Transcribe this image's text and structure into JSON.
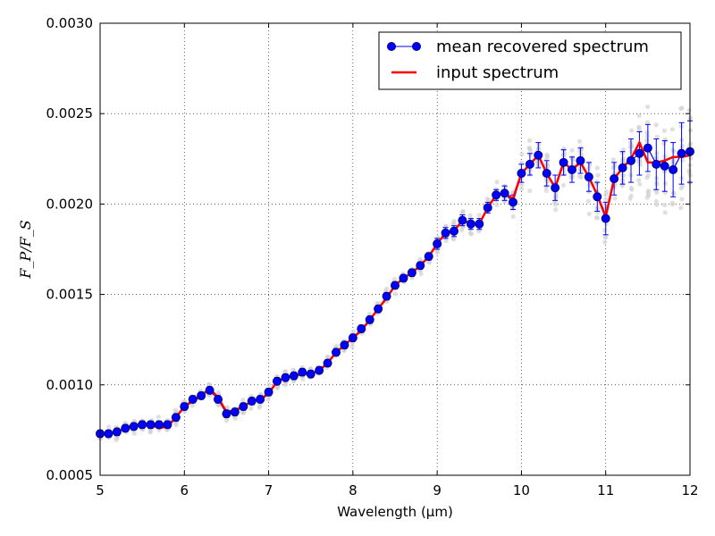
{
  "chart_data": {
    "type": "line",
    "xlabel": "Wavelength (μm)",
    "ylabel": "F_P/F_S",
    "xlim": [
      5,
      12
    ],
    "ylim": [
      0.0005,
      0.003
    ],
    "x_ticks": [
      "5",
      "6",
      "7",
      "8",
      "9",
      "10",
      "11",
      "12"
    ],
    "y_ticks": [
      "0.0005",
      "0.0010",
      "0.0015",
      "0.0020",
      "0.0025",
      "0.0030"
    ],
    "grid": true,
    "legend_placement": "top-right",
    "series": [
      {
        "name": "mean recovered spectrum",
        "color": "#0000ff",
        "style": "line-with-markers-and-errorbars",
        "x": [
          5.0,
          5.1,
          5.2,
          5.3,
          5.4,
          5.5,
          5.6,
          5.7,
          5.8,
          5.9,
          6.0,
          6.1,
          6.2,
          6.3,
          6.4,
          6.5,
          6.6,
          6.7,
          6.8,
          6.9,
          7.0,
          7.1,
          7.2,
          7.3,
          7.4,
          7.5,
          7.6,
          7.7,
          7.8,
          7.9,
          8.0,
          8.1,
          8.2,
          8.3,
          8.4,
          8.5,
          8.6,
          8.7,
          8.8,
          8.9,
          9.0,
          9.1,
          9.2,
          9.3,
          9.4,
          9.5,
          9.6,
          9.7,
          9.8,
          9.9,
          10.0,
          10.1,
          10.2,
          10.3,
          10.4,
          10.5,
          10.6,
          10.7,
          10.8,
          10.9,
          11.0,
          11.1,
          11.2,
          11.3,
          11.4,
          11.5,
          11.6,
          11.7,
          11.8,
          11.9,
          12.0
        ],
        "y": [
          0.00073,
          0.00073,
          0.00074,
          0.00076,
          0.00077,
          0.00078,
          0.00078,
          0.00078,
          0.00078,
          0.00082,
          0.00088,
          0.00092,
          0.00094,
          0.00097,
          0.00092,
          0.00084,
          0.00085,
          0.00088,
          0.00091,
          0.00092,
          0.00096,
          0.00102,
          0.00104,
          0.00105,
          0.00107,
          0.00106,
          0.00108,
          0.00112,
          0.00118,
          0.00122,
          0.00126,
          0.00131,
          0.00136,
          0.00142,
          0.00149,
          0.00155,
          0.00159,
          0.00162,
          0.00166,
          0.00171,
          0.00178,
          0.00184,
          0.00185,
          0.00191,
          0.00189,
          0.00189,
          0.00198,
          0.00205,
          0.00206,
          0.00201,
          0.00217,
          0.00222,
          0.00227,
          0.00217,
          0.00209,
          0.00223,
          0.00219,
          0.00224,
          0.00215,
          0.00204,
          0.00192,
          0.00214,
          0.0022,
          0.00224,
          0.00228,
          0.00231,
          0.00222,
          0.00221,
          0.00219,
          0.00228,
          0.00229
        ],
        "errors": [
          2e-05,
          2e-05,
          2e-05,
          2e-05,
          2e-05,
          2e-05,
          2e-05,
          2e-05,
          2e-05,
          2e-05,
          2e-05,
          2e-05,
          2e-05,
          2e-05,
          2e-05,
          2e-05,
          2e-05,
          2e-05,
          2e-05,
          2e-05,
          2e-05,
          2e-05,
          2e-05,
          2e-05,
          2e-05,
          2e-05,
          2e-05,
          2e-05,
          2e-05,
          2e-05,
          2e-05,
          2e-05,
          2e-05,
          2e-05,
          2e-05,
          2e-05,
          2e-05,
          2e-05,
          2e-05,
          2e-05,
          3e-05,
          3e-05,
          3e-05,
          3e-05,
          3e-05,
          3e-05,
          3e-05,
          3e-05,
          4e-05,
          4e-05,
          5e-05,
          6e-05,
          7e-05,
          7e-05,
          7e-05,
          7e-05,
          7e-05,
          7e-05,
          8e-05,
          8e-05,
          9e-05,
          9e-05,
          9e-05,
          0.00012,
          0.00012,
          0.00013,
          0.00014,
          0.00014,
          0.00015,
          0.00017,
          0.00017
        ]
      },
      {
        "name": "input spectrum",
        "color": "#ff0000",
        "style": "line",
        "x": [
          5.0,
          5.1,
          5.2,
          5.3,
          5.4,
          5.5,
          5.6,
          5.7,
          5.8,
          5.9,
          6.0,
          6.1,
          6.2,
          6.3,
          6.4,
          6.5,
          6.6,
          6.7,
          6.8,
          6.9,
          7.0,
          7.1,
          7.2,
          7.3,
          7.4,
          7.5,
          7.6,
          7.7,
          7.8,
          7.9,
          8.0,
          8.1,
          8.2,
          8.3,
          8.4,
          8.5,
          8.6,
          8.7,
          8.8,
          8.9,
          9.0,
          9.1,
          9.2,
          9.3,
          9.4,
          9.5,
          9.6,
          9.7,
          9.8,
          9.9,
          10.0,
          10.1,
          10.2,
          10.3,
          10.4,
          10.5,
          10.6,
          10.7,
          10.8,
          10.9,
          11.0,
          11.1,
          11.2,
          11.3,
          11.4,
          11.5,
          11.6,
          11.7,
          11.8,
          11.9,
          12.0
        ],
        "y": [
          0.00072,
          0.00073,
          0.00074,
          0.00076,
          0.00078,
          0.00078,
          0.00078,
          0.00076,
          0.00077,
          0.00082,
          0.00088,
          0.00091,
          0.00094,
          0.00098,
          0.00093,
          0.00085,
          0.00086,
          0.00088,
          0.00091,
          0.00092,
          0.00095,
          0.00102,
          0.00104,
          0.00105,
          0.00106,
          0.00106,
          0.00108,
          0.00112,
          0.00118,
          0.00122,
          0.00126,
          0.0013,
          0.00136,
          0.00142,
          0.00148,
          0.00155,
          0.00159,
          0.00162,
          0.00166,
          0.00171,
          0.00178,
          0.00184,
          0.00185,
          0.00191,
          0.00189,
          0.00189,
          0.00198,
          0.00205,
          0.00206,
          0.00203,
          0.00217,
          0.00222,
          0.00227,
          0.00217,
          0.00209,
          0.00223,
          0.00219,
          0.00223,
          0.00215,
          0.00205,
          0.00193,
          0.00214,
          0.0022,
          0.00225,
          0.00234,
          0.00223,
          0.00223,
          0.00224,
          0.00226,
          0.00226,
          0.00227
        ]
      }
    ],
    "scatter_cloud": {
      "color": "#d3d3d3",
      "description_note": "many faint grey individual retrieval points scattered around each wavelength bin"
    }
  }
}
